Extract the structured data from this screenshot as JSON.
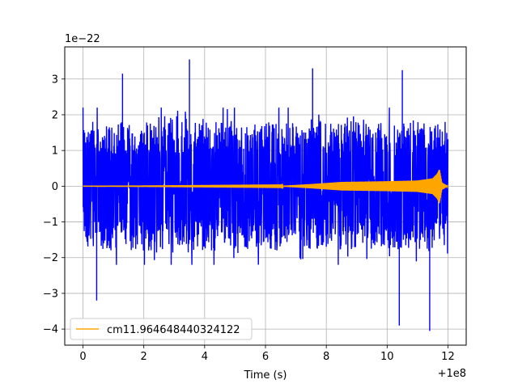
{
  "chart_data": {
    "type": "line",
    "title": "",
    "xlabel": "Time (s)",
    "ylabel": "",
    "x_offset_label": "+1e8",
    "y_scale_label": "1e−22",
    "xlim": [
      -0.6,
      12.6
    ],
    "ylim": [
      -4.45,
      3.9
    ],
    "x_ticks": [
      0,
      2,
      4,
      6,
      8,
      10,
      12
    ],
    "x_tick_labels": [
      "0",
      "2",
      "4",
      "6",
      "8",
      "10",
      "12"
    ],
    "y_ticks": [
      -4,
      -3,
      -2,
      -1,
      0,
      1,
      2,
      3
    ],
    "y_tick_labels": [
      "−4",
      "−3",
      "−2",
      "−1",
      "0",
      "1",
      "2",
      "3"
    ],
    "grid": true,
    "legend_position": "lower-left",
    "series": [
      {
        "color": "#0000ff",
        "x_range": [
          0,
          12
        ],
        "typical_amplitude": 1.9,
        "peaks": [
          {
            "x": 3.5,
            "y": 3.55
          },
          {
            "x": 1.3,
            "y": 3.15
          },
          {
            "x": 7.55,
            "y": 3.3
          },
          {
            "x": 10.5,
            "y": 3.25
          },
          {
            "x": 0.45,
            "y": -3.2
          },
          {
            "x": 10.4,
            "y": -3.9
          },
          {
            "x": 11.4,
            "y": -4.05
          }
        ]
      },
      {
        "name": "cm11.964648440324122",
        "color": "#ffa500",
        "x_range": [
          0,
          12
        ],
        "envelope": [
          {
            "x": 0,
            "y": 0.0
          },
          {
            "x": 6.5,
            "y": 0.01
          },
          {
            "x": 7.5,
            "y": 0.06
          },
          {
            "x": 8.5,
            "y": 0.12
          },
          {
            "x": 10,
            "y": 0.14
          },
          {
            "x": 11,
            "y": 0.16
          },
          {
            "x": 11.5,
            "y": 0.22
          },
          {
            "x": 11.65,
            "y": 0.35
          },
          {
            "x": 11.72,
            "y": 0.48
          },
          {
            "x": 11.8,
            "y": 0.1
          },
          {
            "x": 12,
            "y": 0.0
          }
        ]
      }
    ]
  }
}
